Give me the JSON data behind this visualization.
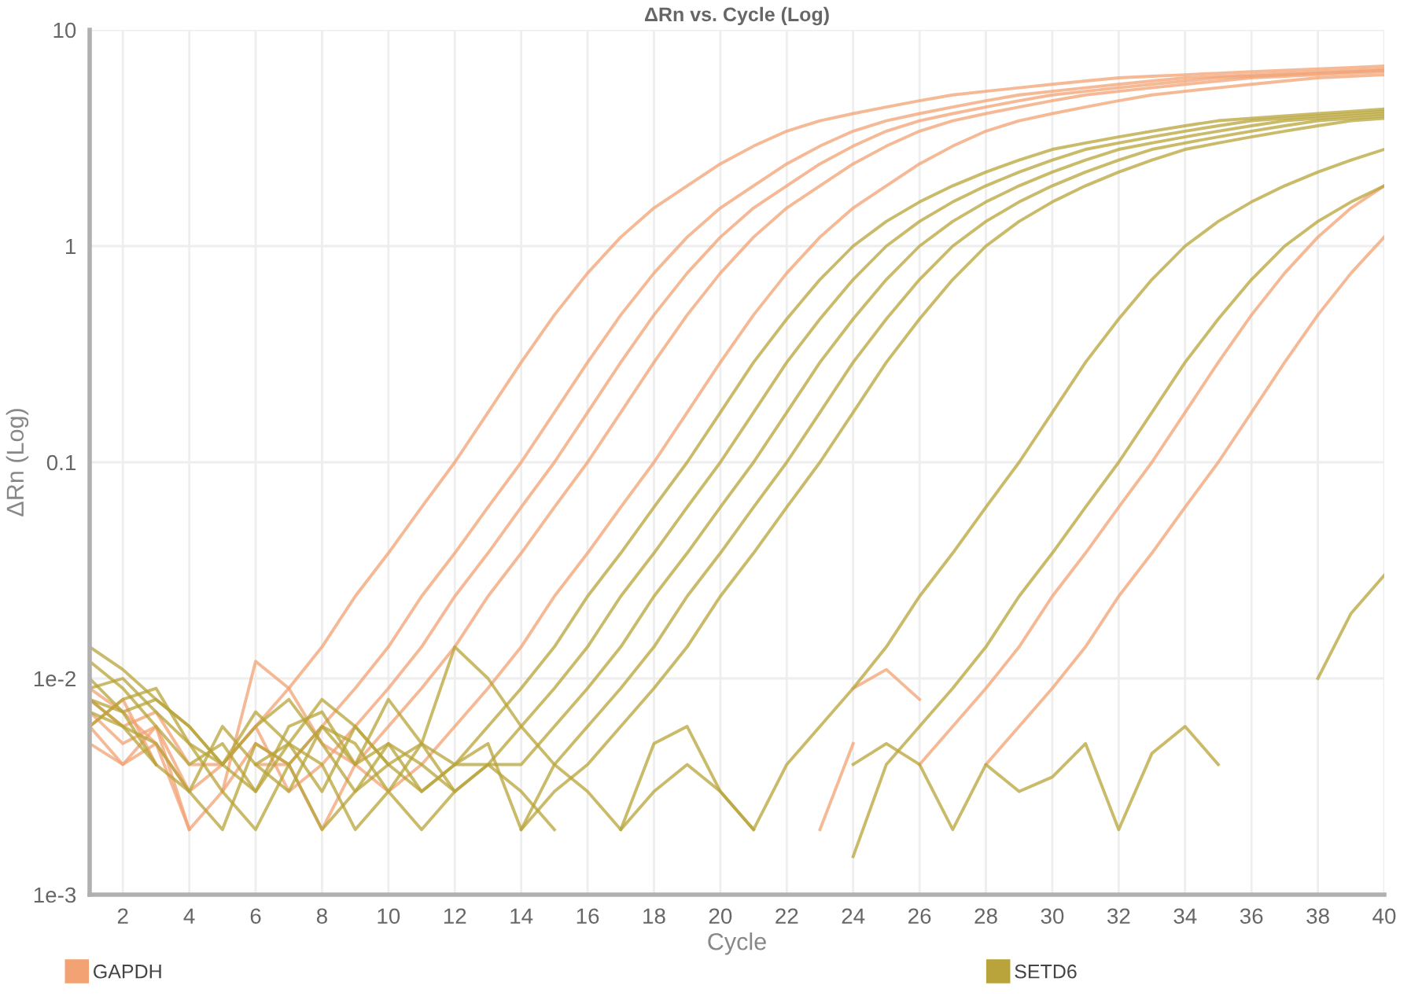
{
  "chart_data": {
    "type": "line",
    "title": "ΔRn vs. Cycle (Log)",
    "xlabel": "Cycle",
    "ylabel": "ΔRn (Log)",
    "x": [
      1,
      2,
      3,
      4,
      5,
      6,
      7,
      8,
      9,
      10,
      11,
      12,
      13,
      14,
      15,
      16,
      17,
      18,
      19,
      20,
      21,
      22,
      23,
      24,
      25,
      26,
      27,
      28,
      29,
      30,
      31,
      32,
      33,
      34,
      35,
      36,
      37,
      38,
      39,
      40
    ],
    "log": "y",
    "xlim": [
      1,
      40
    ],
    "xticks": [
      2,
      4,
      6,
      8,
      10,
      12,
      14,
      16,
      18,
      20,
      22,
      24,
      26,
      28,
      30,
      32,
      34,
      36,
      38,
      40
    ],
    "ylim": [
      0.001,
      10
    ],
    "yticks": [
      {
        "value": 0.001,
        "label": "1e-3"
      },
      {
        "value": 0.01,
        "label": "1e-2"
      },
      0.1,
      1,
      10
    ],
    "grid": true,
    "legend": "bottom",
    "marker": "none",
    "line_style": "solid",
    "series": [
      {
        "name": "GAPDH",
        "color": "#f2a273",
        "values": [
          0.008,
          0.006,
          0.007,
          0.004,
          0.004,
          0.006,
          0.009,
          0.014,
          0.024,
          0.038,
          0.062,
          0.1,
          0.17,
          0.29,
          0.48,
          0.75,
          1.1,
          1.5,
          1.9,
          2.4,
          2.9,
          3.4,
          3.8,
          4.1,
          4.4,
          4.7,
          5.0,
          5.2,
          5.4,
          5.6,
          5.8,
          6.0,
          6.1,
          6.2,
          6.3,
          6.4,
          6.5,
          6.6,
          6.7,
          6.8
        ]
      },
      {
        "color": "#f2a273",
        "values": [
          0.007,
          0.005,
          0.006,
          0.003,
          null,
          0.004,
          0.004,
          0.006,
          0.009,
          0.014,
          0.024,
          0.038,
          0.062,
          0.1,
          0.17,
          0.29,
          0.48,
          0.75,
          1.1,
          1.5,
          1.9,
          2.4,
          2.9,
          3.4,
          3.8,
          4.1,
          4.4,
          4.7,
          5.0,
          5.2,
          5.4,
          5.6,
          5.8,
          6.0,
          6.1,
          6.2,
          6.3,
          6.4,
          6.5,
          6.6
        ]
      },
      {
        "color": "#f2a273",
        "values": [
          0.009,
          0.007,
          0.005,
          0.003,
          0.004,
          0.006,
          0.003,
          0.004,
          0.006,
          0.009,
          0.014,
          0.024,
          0.038,
          0.062,
          0.1,
          0.17,
          0.29,
          0.48,
          0.75,
          1.1,
          1.5,
          1.9,
          2.4,
          2.9,
          3.4,
          3.8,
          4.1,
          4.4,
          4.7,
          5.0,
          5.2,
          5.4,
          5.6,
          5.8,
          6.0,
          6.1,
          6.2,
          6.3,
          6.4,
          6.5
        ]
      },
      {
        "color": "#f2a273",
        "values": [
          0.006,
          0.008,
          0.004,
          null,
          0.003,
          0.005,
          0.004,
          0.002,
          0.004,
          0.006,
          0.009,
          0.014,
          0.024,
          0.038,
          0.062,
          0.1,
          0.17,
          0.29,
          0.48,
          0.75,
          1.1,
          1.5,
          1.9,
          2.4,
          2.9,
          3.4,
          3.8,
          4.1,
          4.4,
          4.7,
          5.0,
          5.2,
          5.4,
          5.6,
          5.8,
          6.0,
          6.1,
          6.2,
          6.3,
          6.4
        ]
      },
      {
        "color": "#f2a273",
        "values": [
          0.005,
          0.004,
          0.006,
          0.002,
          0.003,
          0.012,
          0.009,
          0.005,
          0.004,
          0.003,
          0.004,
          0.006,
          0.009,
          0.014,
          0.024,
          0.038,
          0.062,
          0.1,
          0.17,
          0.29,
          0.48,
          0.75,
          1.1,
          1.5,
          1.9,
          2.4,
          2.9,
          3.4,
          3.8,
          4.1,
          4.4,
          4.7,
          5.0,
          5.2,
          5.4,
          5.6,
          5.8,
          6.0,
          6.1,
          6.2
        ]
      },
      {
        "color": "#f2a273",
        "values": [
          null,
          null,
          null,
          null,
          null,
          null,
          null,
          null,
          null,
          null,
          null,
          null,
          null,
          null,
          null,
          null,
          null,
          null,
          null,
          null,
          null,
          null,
          null,
          0.009,
          0.011,
          0.008,
          null,
          0.004,
          0.006,
          0.009,
          0.014,
          0.024,
          0.038,
          0.062,
          0.1,
          0.17,
          0.29,
          0.48,
          0.75,
          1.1
        ]
      },
      {
        "color": "#f2a273",
        "values": [
          0.006,
          0.004,
          0.005,
          0.002,
          null,
          null,
          null,
          null,
          null,
          null,
          null,
          null,
          null,
          null,
          null,
          null,
          null,
          null,
          null,
          null,
          null,
          null,
          0.002,
          0.005,
          null,
          0.004,
          0.006,
          0.009,
          0.014,
          0.024,
          0.038,
          0.062,
          0.1,
          0.17,
          0.29,
          0.48,
          0.75,
          1.1,
          1.5,
          1.9
        ]
      },
      {
        "name": "SETD6",
        "color": "#b8a43a",
        "values": [
          0.014,
          0.011,
          0.008,
          0.006,
          0.004,
          0.007,
          0.005,
          0.008,
          0.006,
          0.004,
          0.005,
          0.004,
          0.006,
          0.009,
          0.014,
          0.024,
          0.038,
          0.062,
          0.1,
          0.17,
          0.29,
          0.46,
          0.7,
          1.0,
          1.3,
          1.6,
          1.9,
          2.2,
          2.5,
          2.8,
          3.0,
          3.2,
          3.4,
          3.6,
          3.8,
          3.9,
          4.0,
          4.1,
          4.2,
          4.3
        ]
      },
      {
        "color": "#b8a43a",
        "values": [
          0.009,
          0.01,
          0.007,
          0.005,
          0.004,
          0.003,
          0.006,
          0.007,
          0.004,
          0.005,
          0.003,
          0.004,
          0.004,
          0.006,
          0.009,
          0.014,
          0.024,
          0.038,
          0.062,
          0.1,
          0.17,
          0.29,
          0.46,
          0.7,
          1.0,
          1.3,
          1.6,
          1.9,
          2.2,
          2.5,
          2.8,
          3.0,
          3.2,
          3.4,
          3.6,
          3.8,
          3.9,
          4.0,
          4.1,
          4.2
        ]
      },
      {
        "color": "#b8a43a",
        "values": [
          0.006,
          0.008,
          0.009,
          0.005,
          0.003,
          0.002,
          0.004,
          0.006,
          0.005,
          0.003,
          0.002,
          0.003,
          0.004,
          0.004,
          0.006,
          0.009,
          0.014,
          0.024,
          0.038,
          0.062,
          0.1,
          0.17,
          0.29,
          0.46,
          0.7,
          1.0,
          1.3,
          1.6,
          1.9,
          2.2,
          2.5,
          2.8,
          3.0,
          3.2,
          3.4,
          3.6,
          3.8,
          3.9,
          4.0,
          4.1
        ]
      },
      {
        "color": "#b8a43a",
        "values": [
          0.012,
          0.009,
          0.006,
          0.004,
          0.005,
          0.003,
          0.005,
          0.004,
          0.002,
          0.003,
          0.005,
          0.014,
          0.01,
          0.006,
          0.004,
          0.006,
          0.009,
          0.014,
          0.024,
          0.038,
          0.062,
          0.1,
          0.17,
          0.29,
          0.46,
          0.7,
          1.0,
          1.3,
          1.6,
          1.9,
          2.2,
          2.5,
          2.8,
          3.0,
          3.2,
          3.4,
          3.6,
          3.8,
          3.9,
          4.0
        ]
      },
      {
        "color": "#b8a43a",
        "values": [
          0.008,
          0.007,
          0.008,
          0.006,
          0.004,
          0.006,
          0.008,
          0.005,
          0.003,
          0.004,
          0.003,
          0.004,
          0.005,
          0.002,
          0.003,
          0.004,
          0.006,
          0.009,
          0.014,
          0.024,
          0.038,
          0.062,
          0.1,
          0.17,
          0.29,
          0.46,
          0.7,
          1.0,
          1.3,
          1.6,
          1.9,
          2.2,
          2.5,
          2.8,
          3.0,
          3.2,
          3.4,
          3.6,
          3.8,
          3.9
        ]
      },
      {
        "color": "#b8a43a",
        "values": [
          0.01,
          0.007,
          0.004,
          null,
          null,
          0.004,
          0.003,
          0.006,
          0.004,
          0.008,
          0.005,
          0.003,
          0.004,
          0.003,
          0.002,
          null,
          0.002,
          0.005,
          0.006,
          0.003,
          0.002,
          0.004,
          0.006,
          0.009,
          0.014,
          0.024,
          0.038,
          0.062,
          0.1,
          0.17,
          0.29,
          0.46,
          0.7,
          1.0,
          1.3,
          1.6,
          1.9,
          2.2,
          2.5,
          2.8
        ]
      },
      {
        "color": "#b8a43a",
        "values": [
          0.007,
          0.006,
          0.005,
          0.003,
          0.002,
          0.005,
          0.004,
          0.002,
          0.003,
          0.005,
          0.004,
          0.003,
          null,
          0.002,
          0.004,
          0.003,
          0.002,
          0.003,
          0.004,
          0.003,
          0.002,
          null,
          null,
          0.0015,
          0.004,
          0.006,
          0.009,
          0.014,
          0.024,
          0.038,
          0.062,
          0.1,
          0.17,
          0.29,
          0.46,
          0.7,
          1.0,
          1.3,
          1.6,
          1.9
        ]
      },
      {
        "color": "#b8a43a",
        "values": [
          0.008,
          0.006,
          0.004,
          0.003,
          0.006,
          0.004,
          0.005,
          0.003,
          0.006,
          0.004,
          null,
          null,
          null,
          null,
          null,
          null,
          null,
          null,
          null,
          null,
          null,
          null,
          null,
          0.004,
          0.005,
          0.004,
          0.002,
          0.004,
          0.003,
          0.0035,
          0.005,
          0.002,
          0.0045,
          0.006,
          0.004,
          null,
          null,
          0.01,
          0.02,
          0.03
        ]
      }
    ]
  }
}
